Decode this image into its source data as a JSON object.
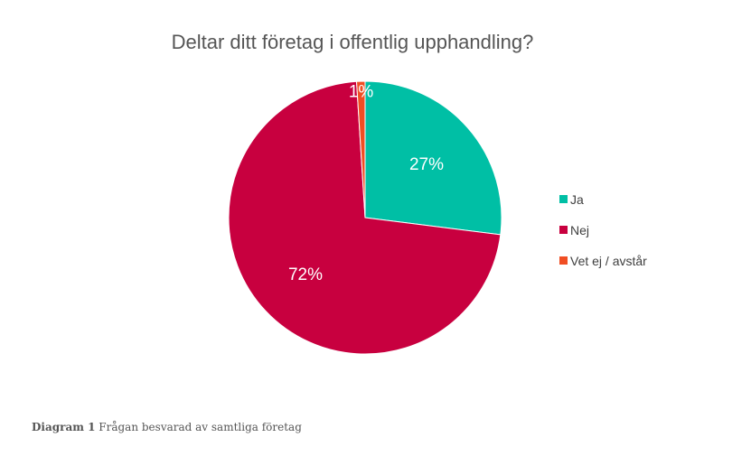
{
  "chart_data": {
    "type": "pie",
    "title": "Deltar ditt företag i offentlig upphandling?",
    "categories": [
      "Ja",
      "Nej",
      "Vet ej / avstår"
    ],
    "values": [
      27,
      72,
      1
    ],
    "data_labels": [
      "27%",
      "72%",
      "1%"
    ],
    "colors": [
      "#00BFA5",
      "#C8003F",
      "#F04E23"
    ],
    "legend_position": "right",
    "start_angle": 0
  },
  "caption": {
    "label": "Diagram 1",
    "text": "Frågan besvarad av samtliga företag"
  }
}
